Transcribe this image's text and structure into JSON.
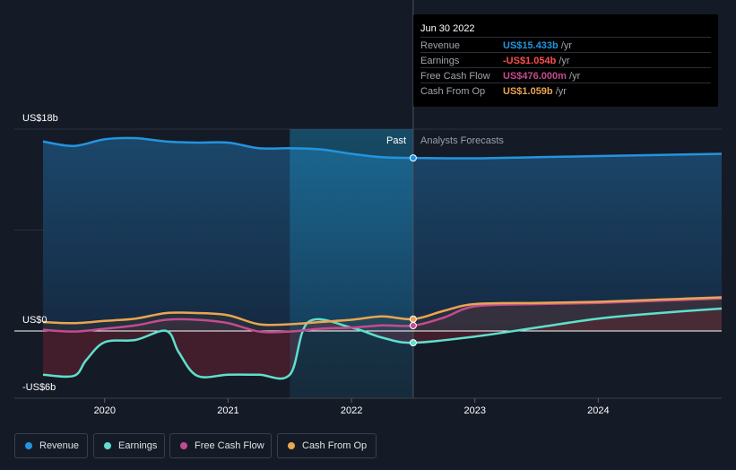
{
  "tooltip": {
    "date": "Jun 30 2022",
    "rows": [
      {
        "label": "Revenue",
        "value": "US$15.433b",
        "unit": "/yr",
        "color": "#2394df"
      },
      {
        "label": "Earnings",
        "value": "-US$1.054b",
        "unit": "/yr",
        "color": "#ff4d4d"
      },
      {
        "label": "Free Cash Flow",
        "value": "US$476.000m",
        "unit": "/yr",
        "color": "#c44b8f"
      },
      {
        "label": "Cash From Op",
        "value": "US$1.059b",
        "unit": "/yr",
        "color": "#e9a552"
      }
    ]
  },
  "section_labels": {
    "past": "Past",
    "forecast": "Analysts Forecasts"
  },
  "legend": [
    {
      "label": "Revenue",
      "color": "#2394df"
    },
    {
      "label": "Earnings",
      "color": "#5ee0cc"
    },
    {
      "label": "Free Cash Flow",
      "color": "#c44b8f"
    },
    {
      "label": "Cash From Op",
      "color": "#e9a552"
    }
  ],
  "chart_data": {
    "type": "line",
    "title": "",
    "ylabel": "",
    "xlabel": "",
    "ylim": [
      -6,
      18
    ],
    "y_tick_labels": [
      "US$18b",
      "US$0",
      "-US$6b"
    ],
    "x_tick_labels": [
      "2020",
      "2021",
      "2022",
      "2023",
      "2024"
    ],
    "x_ticks": [
      2020,
      2021,
      2022,
      2023,
      2024
    ],
    "xlim": [
      2019.5,
      2025.0
    ],
    "past_end": 2022.5,
    "highlight_range": [
      2021.5,
      2022.5
    ],
    "series": [
      {
        "name": "Revenue",
        "color": "#2394df",
        "x": [
          2019.5,
          2019.75,
          2020.0,
          2020.25,
          2020.5,
          2020.75,
          2021.0,
          2021.25,
          2021.5,
          2021.75,
          2022.0,
          2022.25,
          2022.5,
          2023.0,
          2023.5,
          2024.0,
          2024.5,
          2025.0
        ],
        "y": [
          16.9,
          16.5,
          17.1,
          17.2,
          16.9,
          16.8,
          16.8,
          16.3,
          16.3,
          16.2,
          15.8,
          15.5,
          15.43,
          15.4,
          15.5,
          15.6,
          15.7,
          15.8
        ]
      },
      {
        "name": "Earnings",
        "color": "#5ee0cc",
        "x": [
          2019.5,
          2019.75,
          2019.85,
          2020.0,
          2020.25,
          2020.5,
          2020.6,
          2020.75,
          2021.0,
          2021.25,
          2021.5,
          2021.65,
          2022.0,
          2022.25,
          2022.5,
          2023.0,
          2023.5,
          2024.0,
          2024.5,
          2025.0
        ],
        "y": [
          -3.9,
          -4.0,
          -2.6,
          -1.0,
          -0.8,
          0.0,
          -1.9,
          -4.0,
          -3.9,
          -3.9,
          -3.9,
          0.8,
          0.3,
          -0.6,
          -1.05,
          -0.5,
          0.3,
          1.1,
          1.6,
          2.0
        ]
      },
      {
        "name": "Free Cash Flow",
        "color": "#c44b8f",
        "x": [
          2019.5,
          2019.75,
          2020.0,
          2020.25,
          2020.5,
          2020.75,
          2021.0,
          2021.25,
          2021.5,
          2021.75,
          2022.0,
          2022.25,
          2022.5,
          2022.75,
          2023.0,
          2023.5,
          2024.0,
          2024.5,
          2025.0
        ],
        "y": [
          0.1,
          -0.05,
          0.2,
          0.5,
          1.0,
          1.0,
          0.7,
          -0.05,
          -0.05,
          0.2,
          0.3,
          0.5,
          0.48,
          1.2,
          2.2,
          2.4,
          2.5,
          2.7,
          2.9
        ]
      },
      {
        "name": "Cash From Op",
        "color": "#e9a552",
        "x": [
          2019.5,
          2019.75,
          2020.0,
          2020.25,
          2020.5,
          2020.75,
          2021.0,
          2021.25,
          2021.5,
          2021.75,
          2022.0,
          2022.25,
          2022.5,
          2022.75,
          2023.0,
          2023.5,
          2024.0,
          2024.5,
          2025.0
        ],
        "y": [
          0.8,
          0.7,
          0.9,
          1.1,
          1.6,
          1.6,
          1.4,
          0.6,
          0.6,
          0.8,
          1.0,
          1.3,
          1.06,
          1.8,
          2.4,
          2.5,
          2.6,
          2.8,
          3.0
        ]
      }
    ]
  }
}
